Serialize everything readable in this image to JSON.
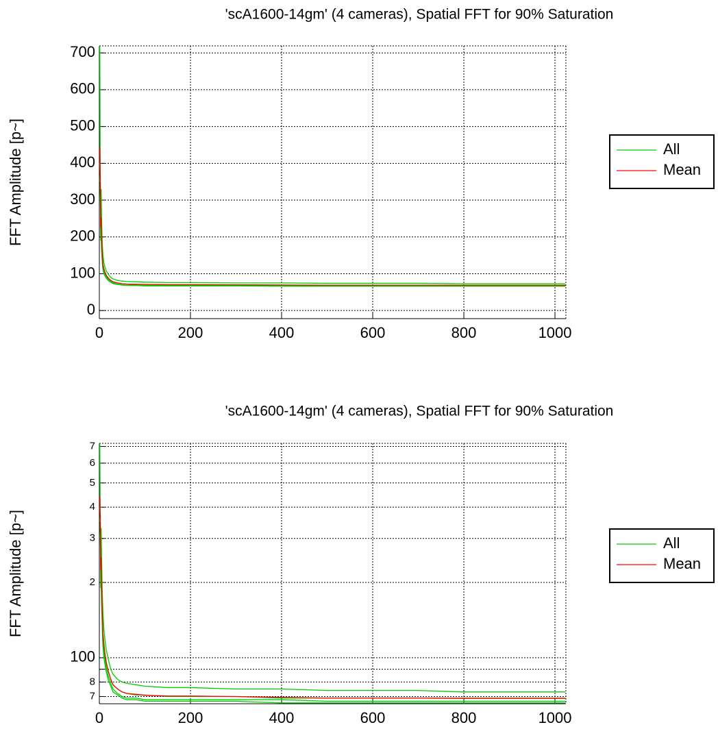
{
  "chart_data": [
    {
      "type": "line",
      "title": "'scA1600-14gm' (4 cameras), Spatial FFT for 90% Saturation",
      "ylabel": "FFT Amplitude [p~]",
      "x": [
        1,
        2,
        3,
        4,
        5,
        6,
        7,
        8,
        10,
        12,
        15,
        20,
        25,
        30,
        40,
        50,
        60,
        80,
        100,
        150,
        200,
        300,
        400,
        500,
        600,
        700,
        800,
        900,
        1000,
        1023
      ],
      "series": [
        {
          "name": "All",
          "color": "#00cc00",
          "values": [
            [
              720,
              350,
              290,
              330,
              250,
              200,
              170,
              150,
              130,
              120,
              108,
              98,
              90,
              86,
              82,
              80,
              79,
              78,
              77,
              76,
              76,
              75,
              75,
              74,
              74,
              74,
              73,
              73,
              73,
              73
            ],
            [
              400,
              360,
              220,
              260,
              180,
              160,
              140,
              125,
              115,
              105,
              96,
              88,
              82,
              78,
              75,
              73,
              72,
              71,
              71,
              70,
              70,
              70,
              69,
              69,
              69,
              69,
              69,
              69,
              69,
              69
            ],
            [
              350,
              380,
              200,
              220,
              170,
              150,
              130,
              115,
              105,
              100,
              92,
              84,
              79,
              75,
              72,
              70,
              69,
              69,
              68,
              68,
              68,
              68,
              68,
              67,
              67,
              67,
              67,
              67,
              67,
              67
            ],
            [
              300,
              330,
              190,
              200,
              160,
              140,
              120,
              110,
              100,
              95,
              88,
              81,
              77,
              73,
              71,
              69,
              68,
              68,
              67,
              67,
              67,
              67,
              66,
              66,
              66,
              66,
              66,
              66,
              66,
              66
            ]
          ]
        },
        {
          "name": "Mean",
          "color": "#ff0000",
          "values": [
            442,
            355,
            225,
            252,
            190,
            162,
            140,
            125,
            112,
            105,
            96,
            88,
            82,
            78,
            75,
            73,
            72,
            71.5,
            70.8,
            70.3,
            70.3,
            70,
            69.5,
            69,
            69,
            69,
            68.8,
            68.8,
            68.8,
            68.8
          ]
        }
      ],
      "xlim": [
        0,
        1024
      ],
      "ylim": [
        -22,
        719
      ],
      "xticks": [
        0,
        200,
        400,
        600,
        800,
        1000
      ],
      "yticks": [
        0,
        100,
        200,
        300,
        400,
        500,
        600,
        700
      ],
      "grid": true,
      "legend": "right"
    },
    {
      "type": "line",
      "title": "'scA1600-14gm' (4 cameras), Spatial FFT for 90% Saturation",
      "ylabel": "FFT Amplitude [p~]",
      "x": [
        1,
        2,
        3,
        4,
        5,
        6,
        7,
        8,
        10,
        12,
        15,
        20,
        25,
        30,
        40,
        50,
        60,
        80,
        100,
        150,
        200,
        300,
        400,
        500,
        600,
        700,
        800,
        900,
        1000,
        1023
      ],
      "series": [
        {
          "name": "All",
          "color": "#00cc00",
          "values": [
            [
              720,
              350,
              290,
              330,
              250,
              200,
              170,
              150,
              130,
              120,
              108,
              98,
              90,
              86,
              82,
              80,
              79,
              78,
              77,
              76,
              76,
              75,
              75,
              74,
              74,
              74,
              73,
              73,
              73,
              73
            ],
            [
              400,
              360,
              220,
              260,
              180,
              160,
              140,
              125,
              115,
              105,
              96,
              88,
              82,
              78,
              75,
              73,
              72,
              71,
              71,
              70,
              70,
              70,
              69,
              69,
              69,
              69,
              69,
              69,
              69,
              69
            ],
            [
              350,
              380,
              200,
              220,
              170,
              150,
              130,
              115,
              105,
              100,
              92,
              84,
              79,
              75,
              72,
              70,
              69,
              69,
              68,
              68,
              68,
              68,
              68,
              67,
              67,
              67,
              67,
              67,
              67,
              67
            ],
            [
              300,
              330,
              190,
              200,
              160,
              140,
              120,
              110,
              100,
              95,
              88,
              81,
              77,
              73,
              71,
              69,
              68,
              68,
              67,
              67,
              67,
              67,
              66,
              66,
              66,
              66,
              66,
              66,
              66,
              66
            ]
          ]
        },
        {
          "name": "Mean",
          "color": "#ff0000",
          "values": [
            442,
            355,
            225,
            252,
            190,
            162,
            140,
            125,
            112,
            105,
            96,
            88,
            82,
            78,
            75,
            73,
            72,
            71.5,
            70.8,
            70.3,
            70.3,
            70,
            69.5,
            69,
            69,
            69,
            68.8,
            68.8,
            68.8,
            68.8
          ]
        }
      ],
      "xlim": [
        0,
        1024
      ],
      "ylim": [
        65.5,
        720
      ],
      "yscale": "log",
      "xticks": [
        0,
        200,
        400,
        600,
        800,
        1000
      ],
      "yticks": [
        {
          "value": 70,
          "label": "7"
        },
        {
          "value": 80,
          "label": "8"
        },
        {
          "value": 90,
          "label": null
        },
        100,
        {
          "value": 200,
          "label": "2"
        },
        {
          "value": 300,
          "label": "3"
        },
        {
          "value": 400,
          "label": "4"
        },
        {
          "value": 500,
          "label": "5"
        },
        {
          "value": 600,
          "label": "6"
        },
        {
          "value": 700,
          "label": "7"
        }
      ],
      "grid": true,
      "legend": "right"
    }
  ]
}
